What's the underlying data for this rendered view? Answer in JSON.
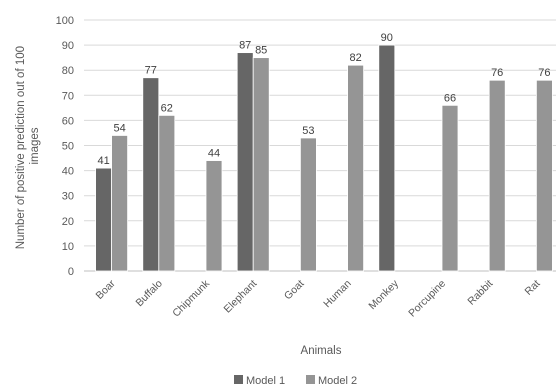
{
  "chart_data": {
    "type": "bar",
    "title": "",
    "xlabel": "Animals",
    "ylabel_lines": [
      "Number of positive prediction out of 100",
      "images"
    ],
    "ylim": [
      0,
      100
    ],
    "yticks": [
      0,
      10,
      20,
      30,
      40,
      50,
      60,
      70,
      80,
      90,
      100
    ],
    "grid": true,
    "legend_position": "bottom",
    "categories": [
      "Boar",
      "Buffalo",
      "Chipmunk",
      "Elephant",
      "Goat",
      "Human",
      "Monkey",
      "Porcupine",
      "Rabbit",
      "Rat"
    ],
    "series": [
      {
        "name": "Model 1",
        "color": "#666666",
        "values": [
          41,
          77,
          null,
          87,
          null,
          null,
          90,
          null,
          null,
          null
        ]
      },
      {
        "name": "Model 2",
        "color": "#959595",
        "values": [
          54,
          62,
          44,
          85,
          53,
          82,
          null,
          66,
          76,
          76
        ]
      }
    ]
  }
}
